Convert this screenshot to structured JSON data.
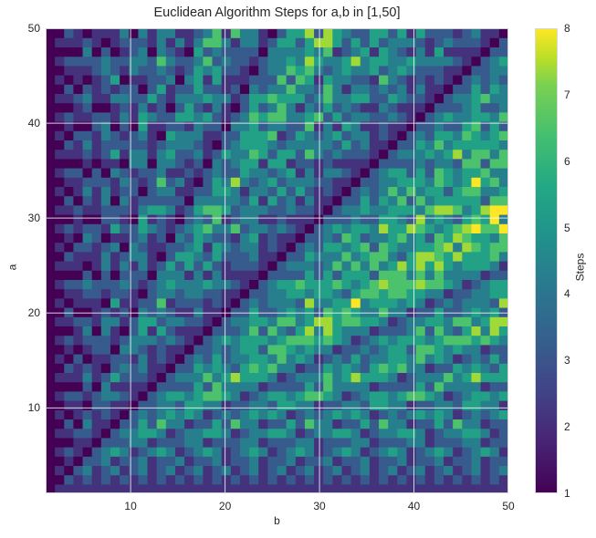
{
  "chart_data": {
    "type": "heatmap",
    "title": "Euclidean Algorithm Steps for a,b in [1,50]",
    "xlabel": "b",
    "ylabel": "a",
    "x_range": [
      1,
      50
    ],
    "y_range": [
      1,
      50
    ],
    "x_ticks": [
      10,
      20,
      30,
      40,
      50
    ],
    "y_ticks": [
      10,
      20,
      30,
      40,
      50
    ],
    "grid": true,
    "colormap": "viridis",
    "colorbar": {
      "label": "Steps",
      "range": [
        1,
        8
      ],
      "ticks": [
        1,
        2,
        3,
        4,
        5,
        6,
        7,
        8
      ]
    },
    "value_rule": "steps(a,b): count iterations of (a,b)=(b,a mod b) until b=0",
    "rows_a": "1..50 bottom to top",
    "cols_b": "1..50 left to right",
    "values": []
  },
  "colors": {
    "viridis": [
      "#440154",
      "#482475",
      "#414487",
      "#355f8d",
      "#2a788e",
      "#21918c",
      "#22a884",
      "#44bf70",
      "#7ad151",
      "#bddf26",
      "#fde725"
    ],
    "grid": "#ffffff",
    "text": "#262626"
  }
}
